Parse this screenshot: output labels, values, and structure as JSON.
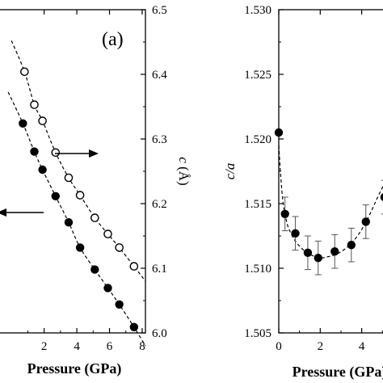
{
  "chart_data": [
    {
      "type": "scatter",
      "panel_label": "(a)",
      "xlabel": "Pressure (GPa)",
      "xlim": [
        -0.8,
        8.2
      ],
      "x_ticks": [
        2,
        4,
        6,
        8
      ],
      "x_tick_labels": [
        "2",
        "4",
        "6",
        "8"
      ],
      "right_axis": {
        "label_c": "c",
        "label_unit": " (Å)",
        "ylim": [
          6.0,
          6.5
        ],
        "ticks": [
          6.0,
          6.1,
          6.2,
          6.3,
          6.4,
          6.5
        ],
        "tick_labels": [
          "6.0",
          "6.1",
          "6.2",
          "6.3",
          "6.4",
          "6.5"
        ]
      },
      "left_axis_ylim": [
        0,
        1
      ],
      "series": [
        {
          "style": "open-circle",
          "axis": "right",
          "x": [
            0.8,
            1.4,
            1.9,
            2.7,
            3.5,
            4.2,
            5.1,
            5.9,
            6.6,
            7.5
          ],
          "y": [
            6.404,
            6.353,
            6.328,
            6.279,
            6.24,
            6.213,
            6.178,
            6.153,
            6.132,
            6.103
          ]
        },
        {
          "style": "filled-circle",
          "axis": "left",
          "x": [
            0.7,
            1.4,
            1.9,
            2.7,
            3.5,
            4.2,
            5.1,
            5.9,
            6.6,
            7.5
          ],
          "y": [
            0.648,
            0.561,
            0.505,
            0.423,
            0.342,
            0.264,
            0.196,
            0.139,
            0.088,
            0.018
          ]
        }
      ],
      "arrows": [
        {
          "direction": "right",
          "points_to_axis": "right"
        },
        {
          "direction": "left",
          "points_to_axis": "left"
        }
      ]
    },
    {
      "type": "scatter",
      "xlabel": "Pressure (GPa)",
      "ylabel": "c/a",
      "xlim": [
        0,
        5.3
      ],
      "ylim": [
        1.505,
        1.53
      ],
      "x_ticks": [
        0,
        2,
        4
      ],
      "x_tick_labels": [
        "0",
        "2",
        "4"
      ],
      "y_ticks": [
        1.505,
        1.51,
        1.515,
        1.52,
        1.525,
        1.53
      ],
      "y_tick_labels": [
        "1.505",
        "1.510",
        "1.515",
        "1.520",
        "1.525",
        "1.530"
      ],
      "series": [
        {
          "style": "filled-circle-errorbar",
          "x": [
            0.0,
            0.3,
            0.8,
            1.4,
            1.9,
            2.7,
            3.5,
            4.2,
            5.1
          ],
          "y": [
            1.5205,
            1.5142,
            1.5127,
            1.5112,
            1.5108,
            1.5113,
            1.5118,
            1.5136,
            1.5155
          ],
          "err": [
            0.0,
            0.0013,
            0.0013,
            0.0013,
            0.0013,
            0.0013,
            0.0013,
            0.0013,
            0.0013
          ]
        }
      ],
      "fit_curve": {
        "x": [
          0.0,
          0.1,
          0.2,
          0.35,
          0.5,
          0.8,
          1.2,
          1.6,
          2.0,
          2.4,
          2.8,
          3.2,
          3.6,
          4.0,
          4.4,
          4.8,
          5.3
        ],
        "y": [
          1.5195,
          1.517,
          1.5152,
          1.5138,
          1.513,
          1.5121,
          1.5114,
          1.511,
          1.5108,
          1.5109,
          1.5111,
          1.5115,
          1.5121,
          1.513,
          1.5142,
          1.5156,
          1.5172
        ]
      }
    }
  ]
}
